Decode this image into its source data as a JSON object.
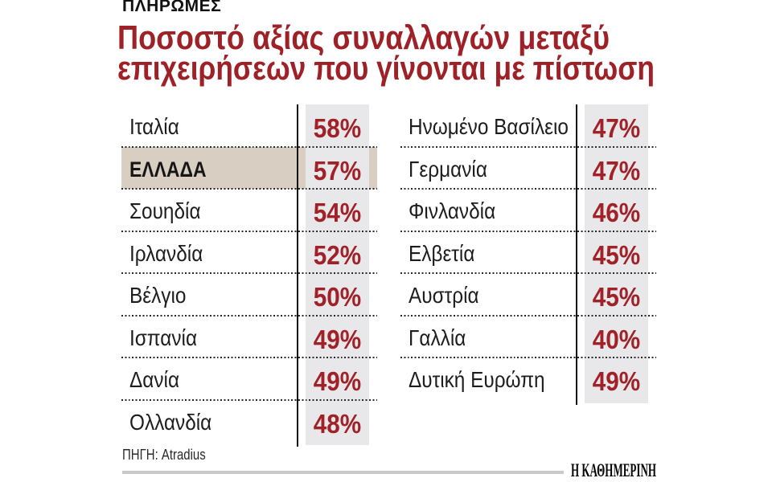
{
  "kicker": "ΠΛΗΡΩΜΕΣ",
  "title": {
    "line1": "Ποσοστό αξίας συναλλαγών μεταξύ",
    "line2": "επιχειρήσεων που γίνονται με πίστωση"
  },
  "source_label": "ΠΗΓΗ: Atradius",
  "brand": "Η ΚΑΘΗΜΕΡΙΝΗ",
  "colors": {
    "title_red": "#9e2127",
    "value_red": "#a02127",
    "highlight_beige": "#d8cfc2",
    "percent_column_gray": "#e8e8ea",
    "text_black": "#1d1d1f",
    "rule_gray": "#c9c9c9"
  },
  "chart_data": {
    "type": "table",
    "title": "Ποσοστό αξίας συναλλαγών μεταξύ επιχειρήσεων που γίνονται με πίστωση",
    "unit": "%",
    "source": "Atradius",
    "columns": [
      {
        "rows": [
          {
            "label": "Ιταλία",
            "value": "58%"
          },
          {
            "label": "ΕΛΛΑΔΑ",
            "value": "57%",
            "highlight": true
          },
          {
            "label": "Σουηδία",
            "value": "54%"
          },
          {
            "label": "Ιρλανδία",
            "value": "52%"
          },
          {
            "label": "Βέλγιο",
            "value": "50%"
          },
          {
            "label": "Ισπανία",
            "value": "49%"
          },
          {
            "label": "Δανία",
            "value": "49%"
          },
          {
            "label": "Ολλανδία",
            "value": "48%"
          }
        ]
      },
      {
        "rows": [
          {
            "label": "Ηνωμένο Βασίλειο",
            "value": "47%"
          },
          {
            "label": "Γερμανία",
            "value": "47%"
          },
          {
            "label": "Φινλανδία",
            "value": "46%"
          },
          {
            "label": "Ελβετία",
            "value": "45%"
          },
          {
            "label": "Αυστρία",
            "value": "45%"
          },
          {
            "label": "Γαλλία",
            "value": "40%"
          },
          {
            "label": "Δυτική Ευρώπη",
            "value": "49%"
          }
        ]
      }
    ]
  }
}
